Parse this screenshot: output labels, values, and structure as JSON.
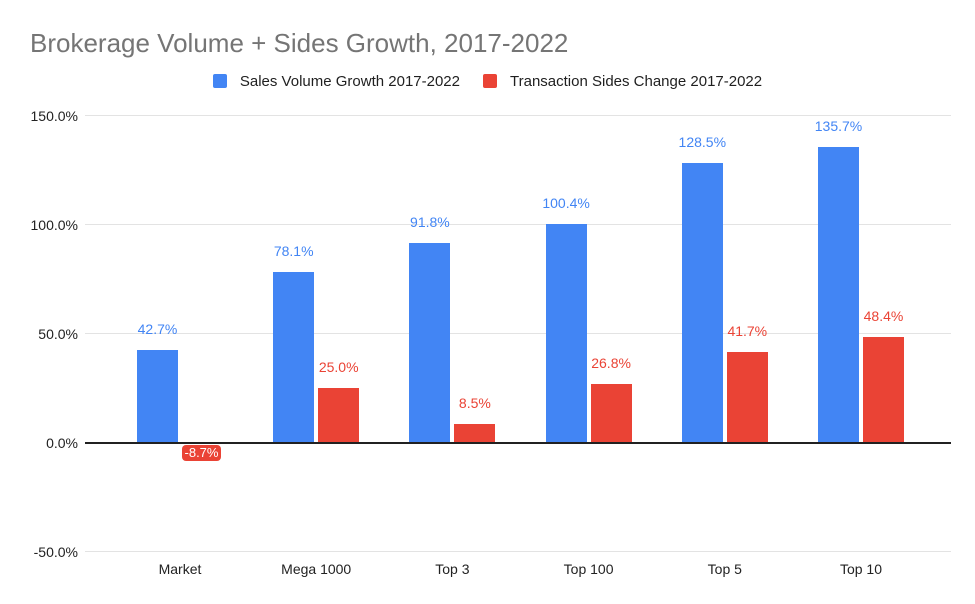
{
  "title": "Brokerage Volume + Sides Growth, 2017-2022",
  "colors": {
    "series_blue": "#4285f4",
    "series_red": "#ea4335",
    "title_gray": "#757575",
    "grid": "#e3e3e3",
    "axis": "#212121",
    "tick_label": "#222222",
    "negative_label_text": "#ffffff"
  },
  "legend": [
    {
      "label": "Sales Volume Growth 2017-2022",
      "color": "#4285f4"
    },
    {
      "label": "Transaction Sides Change 2017-2022",
      "color": "#ea4335"
    }
  ],
  "chart_data": {
    "type": "bar",
    "title": "Brokerage Volume + Sides Growth, 2017-2022",
    "categories": [
      "Market",
      "Mega 1000",
      "Top 3",
      "Top 100",
      "Top 5",
      "Top 10"
    ],
    "series": [
      {
        "name": "Sales Volume Growth 2017-2022",
        "color": "#4285f4",
        "values": [
          42.7,
          78.1,
          91.8,
          100.4,
          128.5,
          135.7
        ]
      },
      {
        "name": "Transaction Sides Change 2017-2022",
        "color": "#ea4335",
        "values": [
          -8.7,
          25.0,
          8.5,
          26.8,
          41.7,
          48.4
        ]
      }
    ],
    "value_labels": [
      [
        "42.7%",
        "78.1%",
        "91.8%",
        "100.4%",
        "128.5%",
        "135.7%"
      ],
      [
        "-8.7%",
        "25.0%",
        "8.5%",
        "26.8%",
        "41.7%",
        "48.4%"
      ]
    ],
    "xlabel": "",
    "ylabel": "",
    "ylim": [
      -50,
      150
    ],
    "y_ticks": [
      "150.0%",
      "100.0%",
      "50.0%",
      "0.0%",
      "-50.0%"
    ],
    "zero_tick": "0.0%",
    "grid": true,
    "legend_position": "top"
  }
}
